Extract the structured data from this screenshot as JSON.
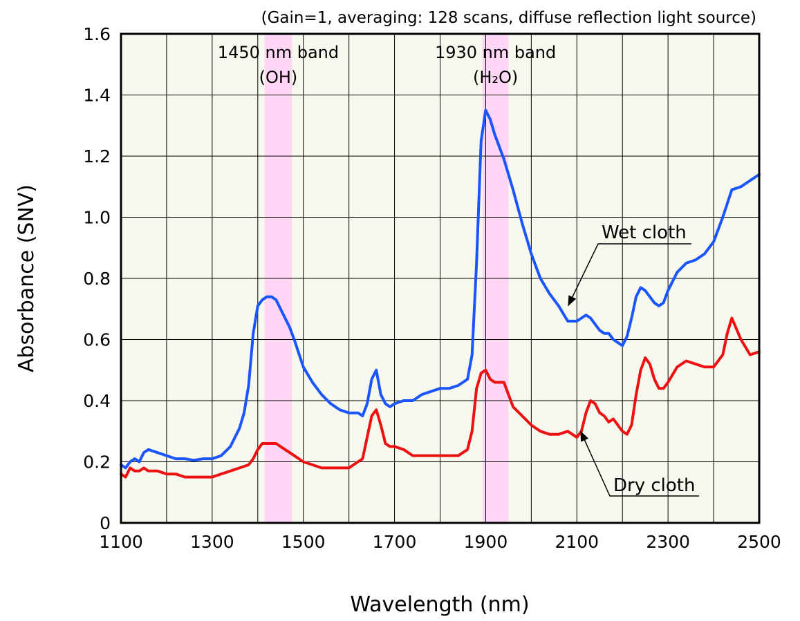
{
  "chart_data": {
    "type": "line",
    "title": "",
    "subtitle": "(Gain=1, averaging: 128 scans, diffuse reflection light source)",
    "xlabel": "Wavelength (nm)",
    "ylabel": "Absorbance (SNV)",
    "xlim": [
      1100,
      2500
    ],
    "ylim": [
      0,
      1.6
    ],
    "xticks": [
      "1100",
      "1300",
      "1500",
      "1700",
      "1900",
      "2100",
      "2300",
      "2500"
    ],
    "yticks": [
      "0",
      "0.2",
      "0.4",
      "0.6",
      "0.8",
      "1.0",
      "1.2",
      "1.4",
      "1.6"
    ],
    "grid": true,
    "bands": [
      {
        "line1": "1450 nm band",
        "line2": "(OH)",
        "x_start": 1415,
        "x_end": 1475,
        "color": "#ffd6f5"
      },
      {
        "line1": "1930 nm band",
        "line2": "(H₂O)",
        "x_start": 1893,
        "x_end": 1950,
        "color": "#ffd6f5"
      }
    ],
    "series": [
      {
        "name": "Wet cloth",
        "color": "#1a55ff",
        "x": [
          1100,
          1110,
          1120,
          1130,
          1140,
          1150,
          1160,
          1180,
          1200,
          1220,
          1240,
          1260,
          1280,
          1300,
          1320,
          1340,
          1360,
          1370,
          1380,
          1390,
          1400,
          1410,
          1420,
          1430,
          1440,
          1450,
          1460,
          1470,
          1480,
          1500,
          1520,
          1540,
          1560,
          1580,
          1600,
          1620,
          1630,
          1640,
          1650,
          1660,
          1670,
          1680,
          1690,
          1700,
          1720,
          1740,
          1760,
          1780,
          1800,
          1820,
          1840,
          1860,
          1870,
          1880,
          1890,
          1900,
          1910,
          1920,
          1940,
          1960,
          1980,
          2000,
          2020,
          2040,
          2060,
          2080,
          2100,
          2110,
          2120,
          2130,
          2140,
          2150,
          2160,
          2170,
          2180,
          2190,
          2200,
          2210,
          2220,
          2230,
          2240,
          2250,
          2260,
          2270,
          2280,
          2290,
          2300,
          2320,
          2340,
          2360,
          2380,
          2400,
          2420,
          2440,
          2460,
          2480,
          2500
        ],
        "values": [
          0.19,
          0.18,
          0.2,
          0.21,
          0.2,
          0.23,
          0.24,
          0.23,
          0.22,
          0.21,
          0.21,
          0.205,
          0.21,
          0.21,
          0.22,
          0.25,
          0.31,
          0.36,
          0.45,
          0.62,
          0.71,
          0.73,
          0.74,
          0.74,
          0.73,
          0.7,
          0.67,
          0.64,
          0.6,
          0.51,
          0.46,
          0.42,
          0.39,
          0.37,
          0.36,
          0.36,
          0.35,
          0.39,
          0.47,
          0.5,
          0.42,
          0.39,
          0.38,
          0.39,
          0.4,
          0.4,
          0.42,
          0.43,
          0.44,
          0.44,
          0.45,
          0.47,
          0.55,
          0.85,
          1.25,
          1.35,
          1.32,
          1.27,
          1.19,
          1.09,
          0.98,
          0.88,
          0.8,
          0.75,
          0.71,
          0.66,
          0.66,
          0.67,
          0.68,
          0.67,
          0.65,
          0.63,
          0.62,
          0.62,
          0.6,
          0.59,
          0.58,
          0.61,
          0.67,
          0.74,
          0.77,
          0.76,
          0.74,
          0.72,
          0.71,
          0.72,
          0.76,
          0.82,
          0.85,
          0.86,
          0.88,
          0.92,
          1.0,
          1.09,
          1.1,
          1.12,
          1.14
        ]
      },
      {
        "name": "Dry cloth",
        "color": "#ee1111",
        "x": [
          1100,
          1110,
          1120,
          1130,
          1140,
          1150,
          1160,
          1180,
          1200,
          1220,
          1240,
          1260,
          1280,
          1300,
          1320,
          1340,
          1360,
          1380,
          1390,
          1400,
          1410,
          1420,
          1440,
          1460,
          1480,
          1500,
          1520,
          1540,
          1560,
          1580,
          1600,
          1620,
          1630,
          1640,
          1650,
          1660,
          1670,
          1680,
          1690,
          1700,
          1720,
          1740,
          1760,
          1780,
          1800,
          1820,
          1840,
          1860,
          1870,
          1880,
          1890,
          1900,
          1910,
          1920,
          1930,
          1940,
          1950,
          1960,
          1980,
          2000,
          2020,
          2040,
          2060,
          2080,
          2100,
          2110,
          2120,
          2130,
          2140,
          2150,
          2160,
          2170,
          2180,
          2190,
          2200,
          2210,
          2220,
          2230,
          2240,
          2250,
          2260,
          2270,
          2280,
          2290,
          2300,
          2320,
          2340,
          2360,
          2380,
          2400,
          2420,
          2430,
          2440,
          2460,
          2480,
          2500
        ],
        "values": [
          0.16,
          0.15,
          0.18,
          0.17,
          0.17,
          0.18,
          0.17,
          0.17,
          0.16,
          0.16,
          0.15,
          0.15,
          0.15,
          0.15,
          0.16,
          0.17,
          0.18,
          0.19,
          0.21,
          0.24,
          0.26,
          0.26,
          0.26,
          0.24,
          0.22,
          0.2,
          0.19,
          0.18,
          0.18,
          0.18,
          0.18,
          0.2,
          0.21,
          0.28,
          0.35,
          0.37,
          0.32,
          0.26,
          0.25,
          0.25,
          0.24,
          0.22,
          0.22,
          0.22,
          0.22,
          0.22,
          0.22,
          0.24,
          0.3,
          0.44,
          0.49,
          0.5,
          0.47,
          0.46,
          0.46,
          0.46,
          0.42,
          0.38,
          0.35,
          0.32,
          0.3,
          0.29,
          0.29,
          0.3,
          0.28,
          0.3,
          0.36,
          0.4,
          0.39,
          0.36,
          0.35,
          0.33,
          0.34,
          0.32,
          0.3,
          0.29,
          0.32,
          0.42,
          0.5,
          0.54,
          0.52,
          0.47,
          0.44,
          0.44,
          0.46,
          0.51,
          0.53,
          0.52,
          0.51,
          0.51,
          0.55,
          0.62,
          0.67,
          0.6,
          0.55,
          0.56
        ]
      }
    ]
  }
}
